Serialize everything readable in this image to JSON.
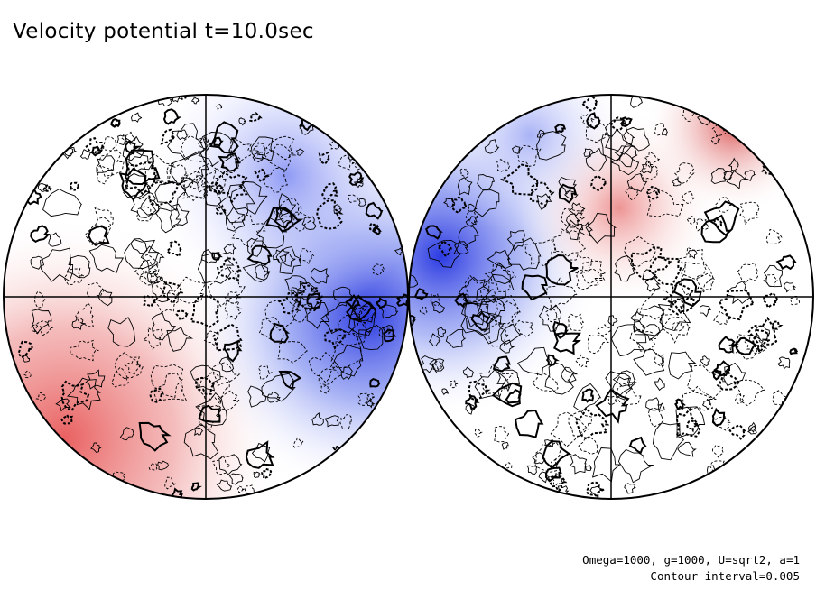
{
  "figure": {
    "title": "Velocity potential t=10.0sec",
    "params_text": "Omega=1000, g=1000, U=sqrt2, a=1",
    "contour_interval_text": "Contour interval=0.005"
  },
  "colors": {
    "positive": "#e06060",
    "negative": "#4050e0",
    "background": "#ffffff",
    "line": "#000000"
  },
  "chart_data": {
    "type": "contour",
    "projection": "orthographic, two hemispheres",
    "hemispheres": [
      {
        "name": "left",
        "dominant_features": [
          "negative potential (blue) on right limb",
          "positive potential (red) in lower-left"
        ]
      },
      {
        "name": "right",
        "dominant_features": [
          "negative potential (blue) on left limb",
          "positive potential (red) in upper region"
        ]
      }
    ],
    "contour_interval": 0.005
  }
}
